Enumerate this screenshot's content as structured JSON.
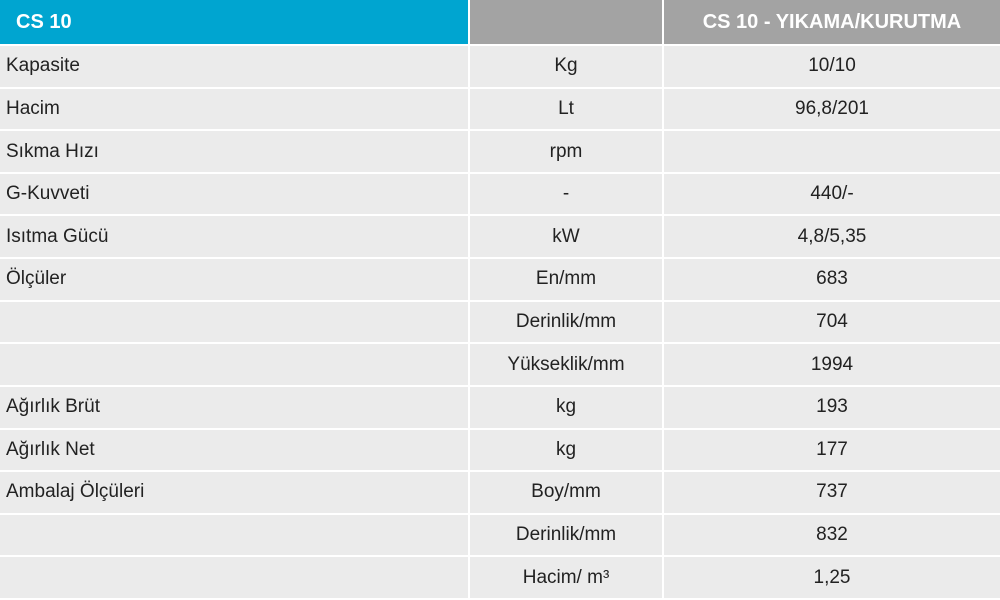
{
  "header": {
    "cells": [
      "CS 10",
      null,
      "CS 10 - YIKAMA/KURUTMA"
    ]
  },
  "table": {
    "rows": [
      [
        "Kapasite",
        "Kg",
        "10/10"
      ],
      [
        "Hacim",
        "Lt",
        "96,8/201"
      ],
      [
        "Sıkma Hızı",
        "rpm",
        null
      ],
      [
        "G-Kuvveti",
        "-",
        "440/-"
      ],
      [
        "Isıtma Gücü",
        "kW",
        "4,8/5,35"
      ],
      [
        "Ölçüler",
        "En/mm",
        "683"
      ],
      [
        null,
        "Derinlik/mm",
        "704"
      ],
      [
        null,
        "Yükseklik/mm",
        "1994"
      ],
      [
        "Ağırlık Brüt",
        "kg",
        "193"
      ],
      [
        "Ağırlık Net",
        "kg",
        "177"
      ],
      [
        "Ambalaj Ölçüleri",
        "Boy/mm",
        "737"
      ],
      [
        null,
        "Derinlik/mm",
        "832"
      ],
      [
        null,
        "Hacim/ m³",
        "1,25"
      ]
    ]
  }
}
